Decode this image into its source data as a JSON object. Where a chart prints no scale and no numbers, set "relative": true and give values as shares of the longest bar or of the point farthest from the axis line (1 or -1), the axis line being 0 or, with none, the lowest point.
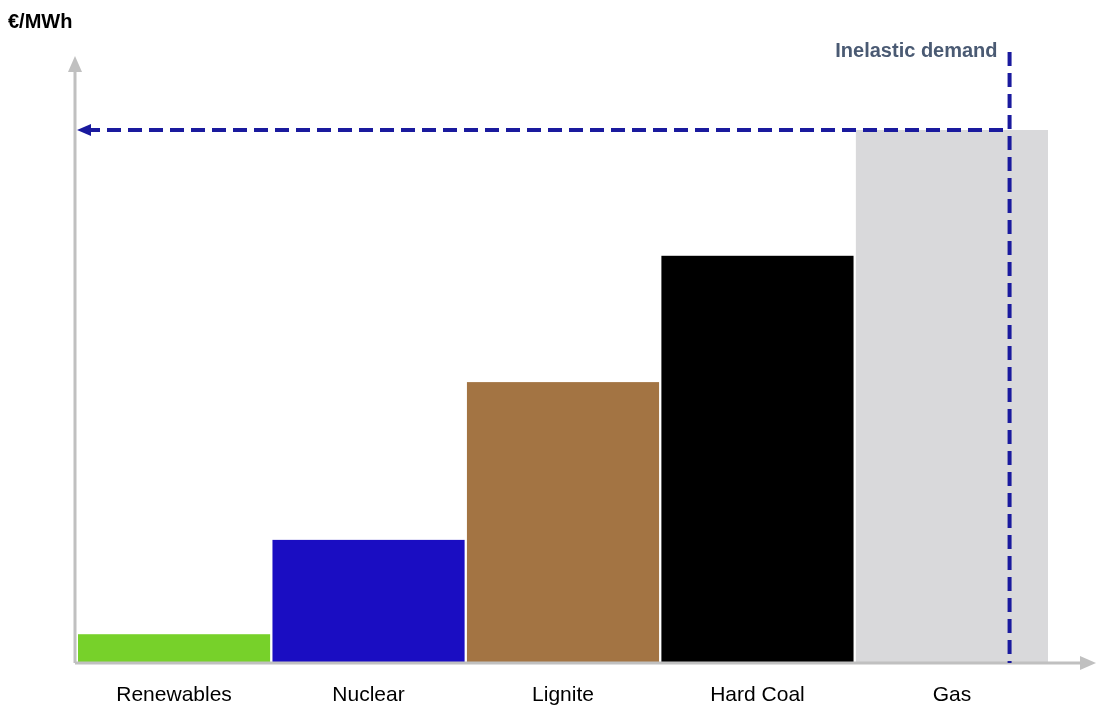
{
  "chart_data": {
    "type": "bar",
    "relative": true,
    "ylabel": "€/MWh",
    "categories": [
      "Renewables",
      "Nuclear",
      "Lignite",
      "Hard Coal",
      "Gas"
    ],
    "values": [
      0.054,
      0.231,
      0.527,
      0.764,
      1
    ],
    "colors": [
      "#77d12a",
      "#1a0dc2",
      "#a37443",
      "#000000",
      "#d9d9db"
    ],
    "ref_lines": [
      {
        "axis": "y",
        "value": 1,
        "label": null,
        "color": "#1a1a9e",
        "line_style": "dashed"
      },
      {
        "axis": "x",
        "value": "Gas",
        "label": "Inelastic demand",
        "color": "#1a1a9e",
        "line_style": "dashed"
      }
    ],
    "tick_labels": "x"
  }
}
